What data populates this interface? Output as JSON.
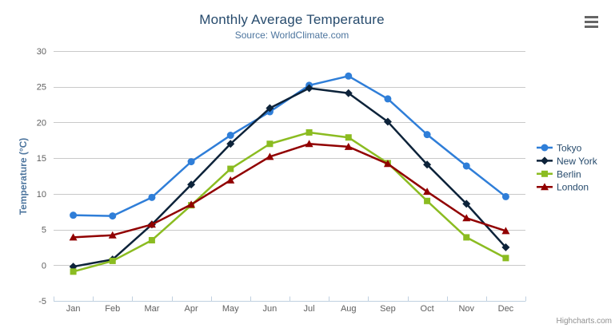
{
  "chart": {
    "credit": "Highcharts.com",
    "export_menu_icon": "hamburger-menu-icon"
  },
  "chart_data": {
    "type": "line",
    "title": "Monthly Average Temperature",
    "subtitle": "Source: WorldClimate.com",
    "xlabel": "",
    "ylabel": "Temperature (°C)",
    "categories": [
      "Jan",
      "Feb",
      "Mar",
      "Apr",
      "May",
      "Jun",
      "Jul",
      "Aug",
      "Sep",
      "Oct",
      "Nov",
      "Dec"
    ],
    "ylim": [
      -5,
      30
    ],
    "yticks": [
      -5,
      0,
      5,
      10,
      15,
      20,
      25,
      30
    ],
    "grid": "horizontal",
    "legend_position": "right",
    "series": [
      {
        "name": "Tokyo",
        "color": "#2f7ed8",
        "symbol": "circle",
        "values": [
          7.0,
          6.9,
          9.5,
          14.5,
          18.2,
          21.5,
          25.2,
          26.5,
          23.3,
          18.3,
          13.9,
          9.6
        ]
      },
      {
        "name": "New York",
        "color": "#0d233a",
        "symbol": "diamond",
        "values": [
          -0.2,
          0.8,
          5.7,
          11.3,
          17.0,
          22.0,
          24.8,
          24.1,
          20.1,
          14.1,
          8.6,
          2.5
        ]
      },
      {
        "name": "Berlin",
        "color": "#8bbc21",
        "symbol": "square",
        "values": [
          -0.9,
          0.6,
          3.5,
          8.4,
          13.5,
          17.0,
          18.6,
          17.9,
          14.3,
          9.0,
          3.9,
          1.0
        ]
      },
      {
        "name": "London",
        "color": "#910000",
        "symbol": "triangle",
        "values": [
          3.9,
          4.2,
          5.7,
          8.5,
          11.9,
          15.2,
          17.0,
          16.6,
          14.2,
          10.3,
          6.6,
          4.8
        ]
      }
    ]
  },
  "colors": {
    "title": "#274b6d",
    "subtitle": "#4d759e",
    "y_axis_title": "#4d759e",
    "axis_label": "#606060",
    "axis_line": "#c0d0e0",
    "gridline": "#c9c9c9",
    "legend_text": "#274b6d",
    "credit": "#909090",
    "menu_icon": "#666666",
    "background": "#ffffff"
  }
}
